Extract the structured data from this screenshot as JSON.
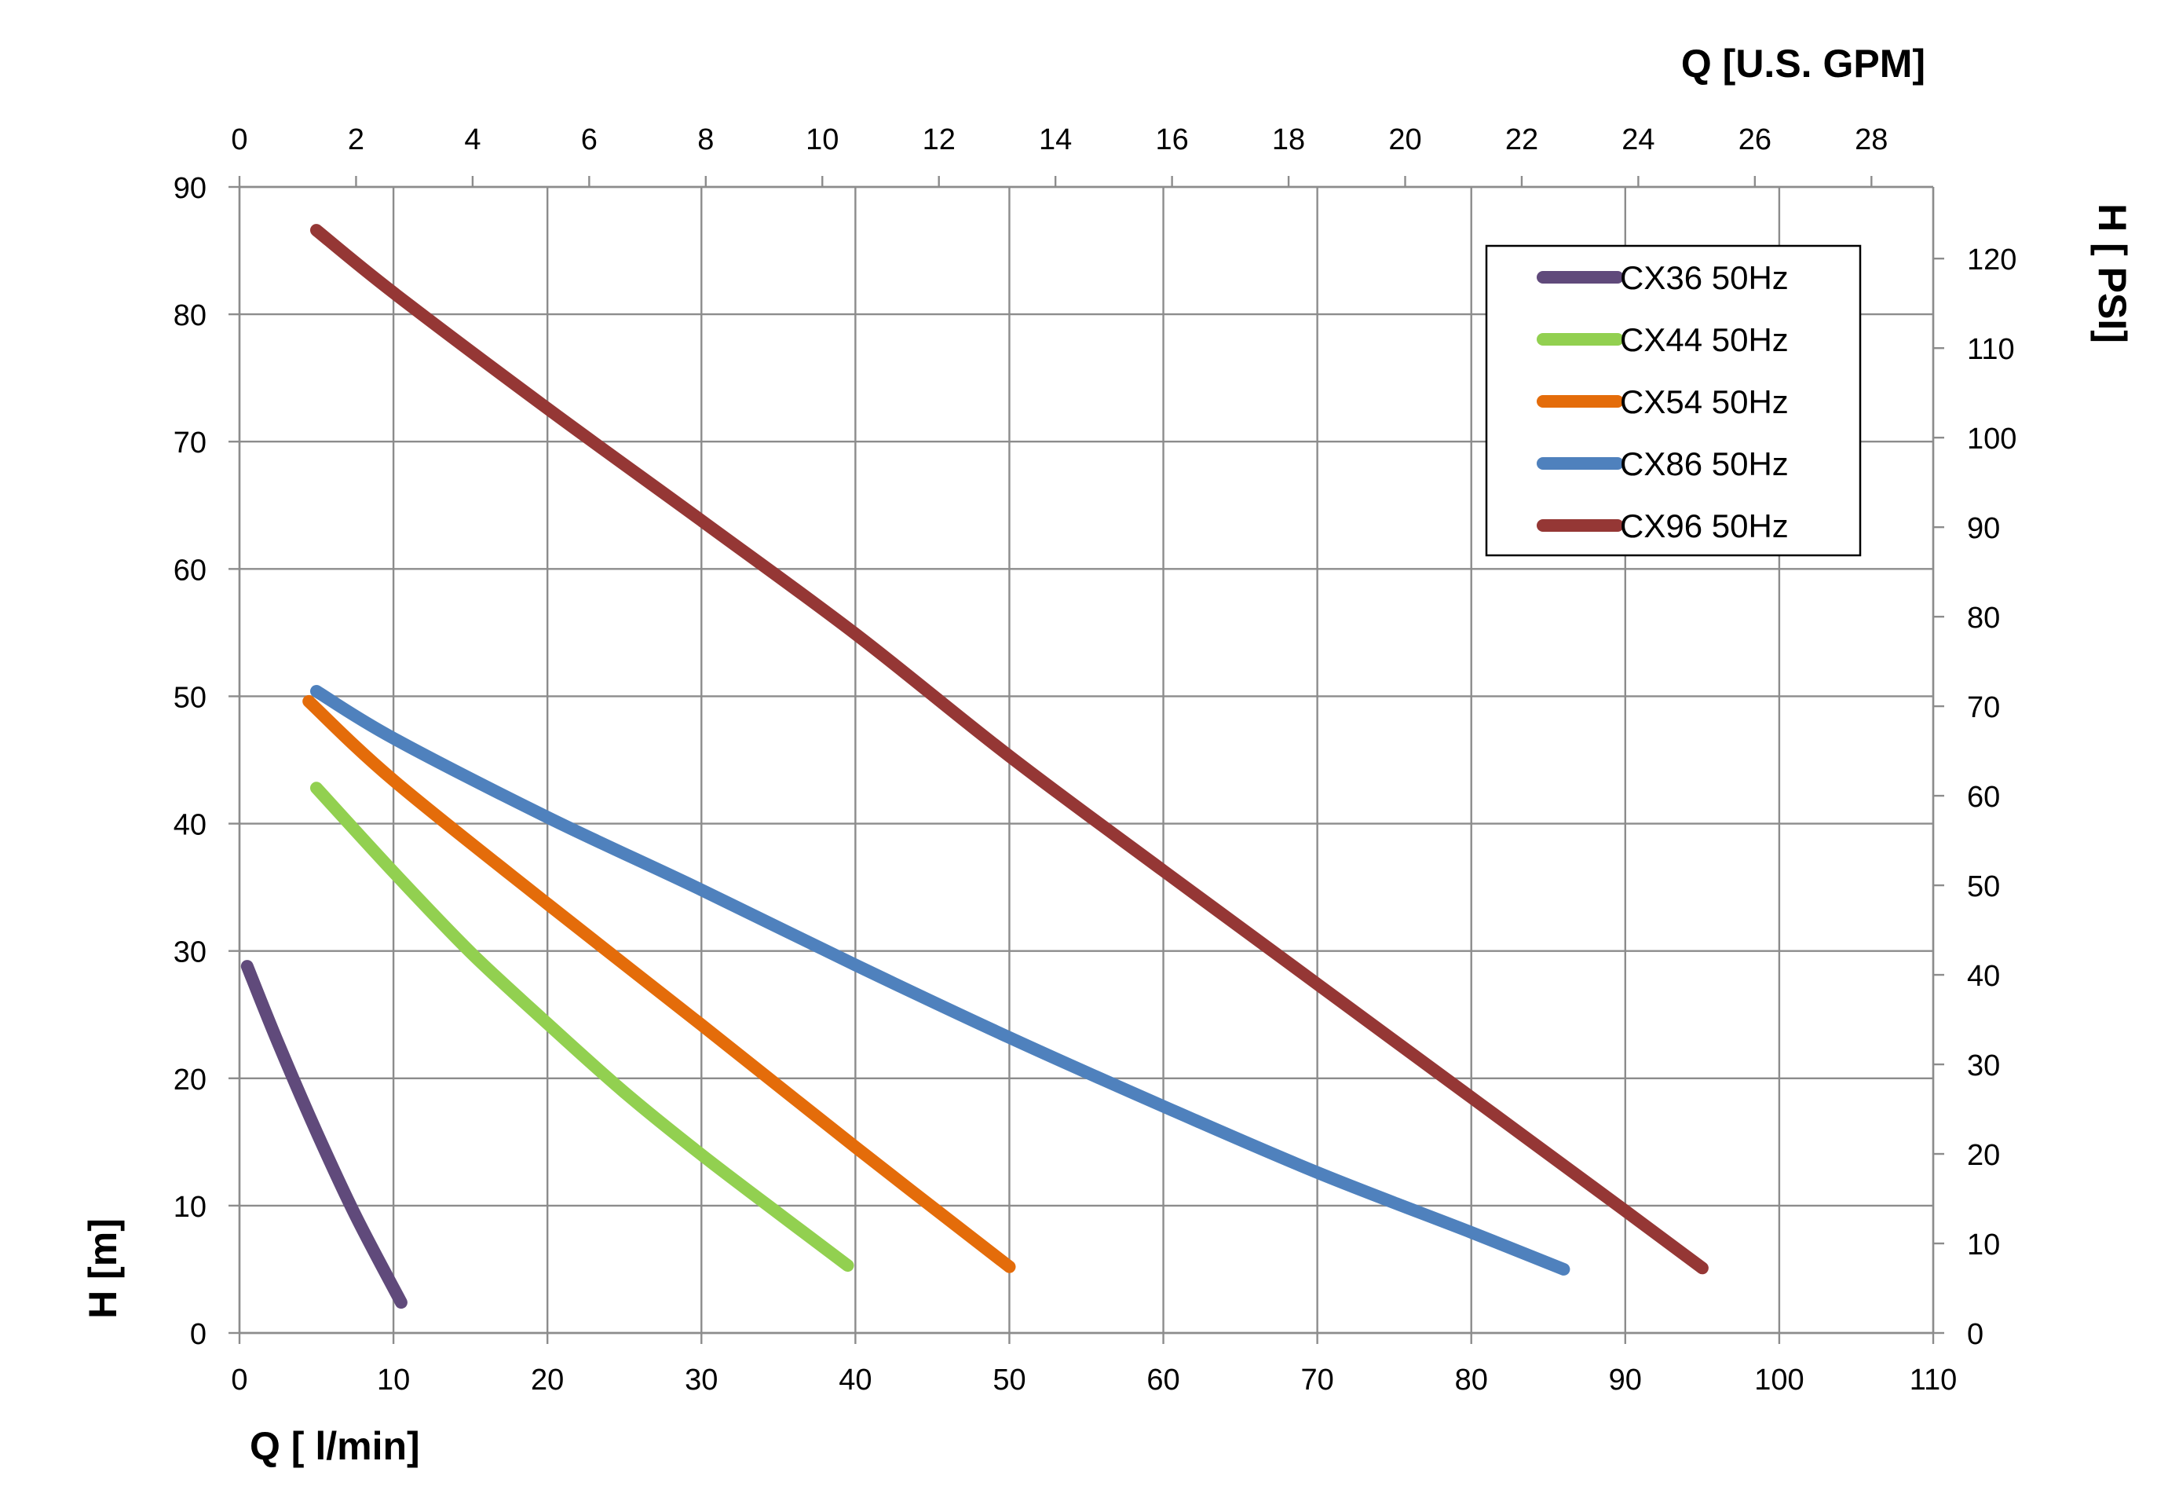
{
  "chart_data": {
    "type": "line",
    "x_axis_bottom": {
      "label": "Q [ l/min]",
      "range": [
        0,
        110
      ],
      "ticks": [
        0,
        10,
        20,
        30,
        40,
        50,
        60,
        70,
        80,
        90,
        100,
        110
      ]
    },
    "x_axis_top": {
      "label": "Q  [U.S. GPM]",
      "range": [
        0,
        29.06
      ],
      "ticks": [
        0,
        2,
        4,
        6,
        8,
        10,
        12,
        14,
        16,
        18,
        20,
        22,
        24,
        26,
        28
      ]
    },
    "y_axis_left": {
      "label": "H [m]",
      "range": [
        0,
        90
      ],
      "ticks": [
        0,
        10,
        20,
        30,
        40,
        50,
        60,
        70,
        80,
        90
      ]
    },
    "y_axis_right": {
      "label": "H [ PSI]",
      "range": [
        0,
        128
      ],
      "ticks": [
        0,
        10,
        20,
        30,
        40,
        50,
        60,
        70,
        80,
        90,
        100,
        110,
        120
      ]
    },
    "grid": true,
    "legend_position": "top-right",
    "series": [
      {
        "name": "CX36 50Hz",
        "color": "#604A7B",
        "points": [
          [
            0.5,
            28.8
          ],
          [
            2.5,
            22.8
          ],
          [
            5,
            15.8
          ],
          [
            7.5,
            9.3
          ],
          [
            10.5,
            2.4
          ]
        ]
      },
      {
        "name": "CX44 50Hz",
        "color": "#92D050",
        "points": [
          [
            5,
            42.8
          ],
          [
            10,
            36.2
          ],
          [
            15,
            29.9
          ],
          [
            20,
            24.3
          ],
          [
            25,
            18.9
          ],
          [
            30,
            14.0
          ],
          [
            35,
            9.4
          ],
          [
            39.5,
            5.3
          ]
        ]
      },
      {
        "name": "CX54 50Hz",
        "color": "#E46C0A",
        "points": [
          [
            4.5,
            49.6
          ],
          [
            10,
            43.4
          ],
          [
            20,
            33.7
          ],
          [
            30,
            24.2
          ],
          [
            40,
            14.6
          ],
          [
            50,
            5.2
          ]
        ]
      },
      {
        "name": "CX86 50Hz",
        "color": "#4F81BD",
        "points": [
          [
            5,
            50.4
          ],
          [
            10,
            46.7
          ],
          [
            20,
            40.5
          ],
          [
            30,
            34.8
          ],
          [
            40,
            28.9
          ],
          [
            50,
            23.2
          ],
          [
            60,
            17.8
          ],
          [
            70,
            12.6
          ],
          [
            80,
            7.9
          ],
          [
            86,
            5.0
          ]
        ]
      },
      {
        "name": "CX96 50Hz",
        "color": "#953735",
        "points": [
          [
            5,
            86.6
          ],
          [
            10,
            81.7
          ],
          [
            20,
            72.6
          ],
          [
            30,
            63.8
          ],
          [
            40,
            54.9
          ],
          [
            50,
            45.3
          ],
          [
            60,
            36.3
          ],
          [
            70,
            27.4
          ],
          [
            80,
            18.5
          ],
          [
            90,
            9.6
          ],
          [
            95,
            5.1
          ]
        ]
      }
    ]
  }
}
